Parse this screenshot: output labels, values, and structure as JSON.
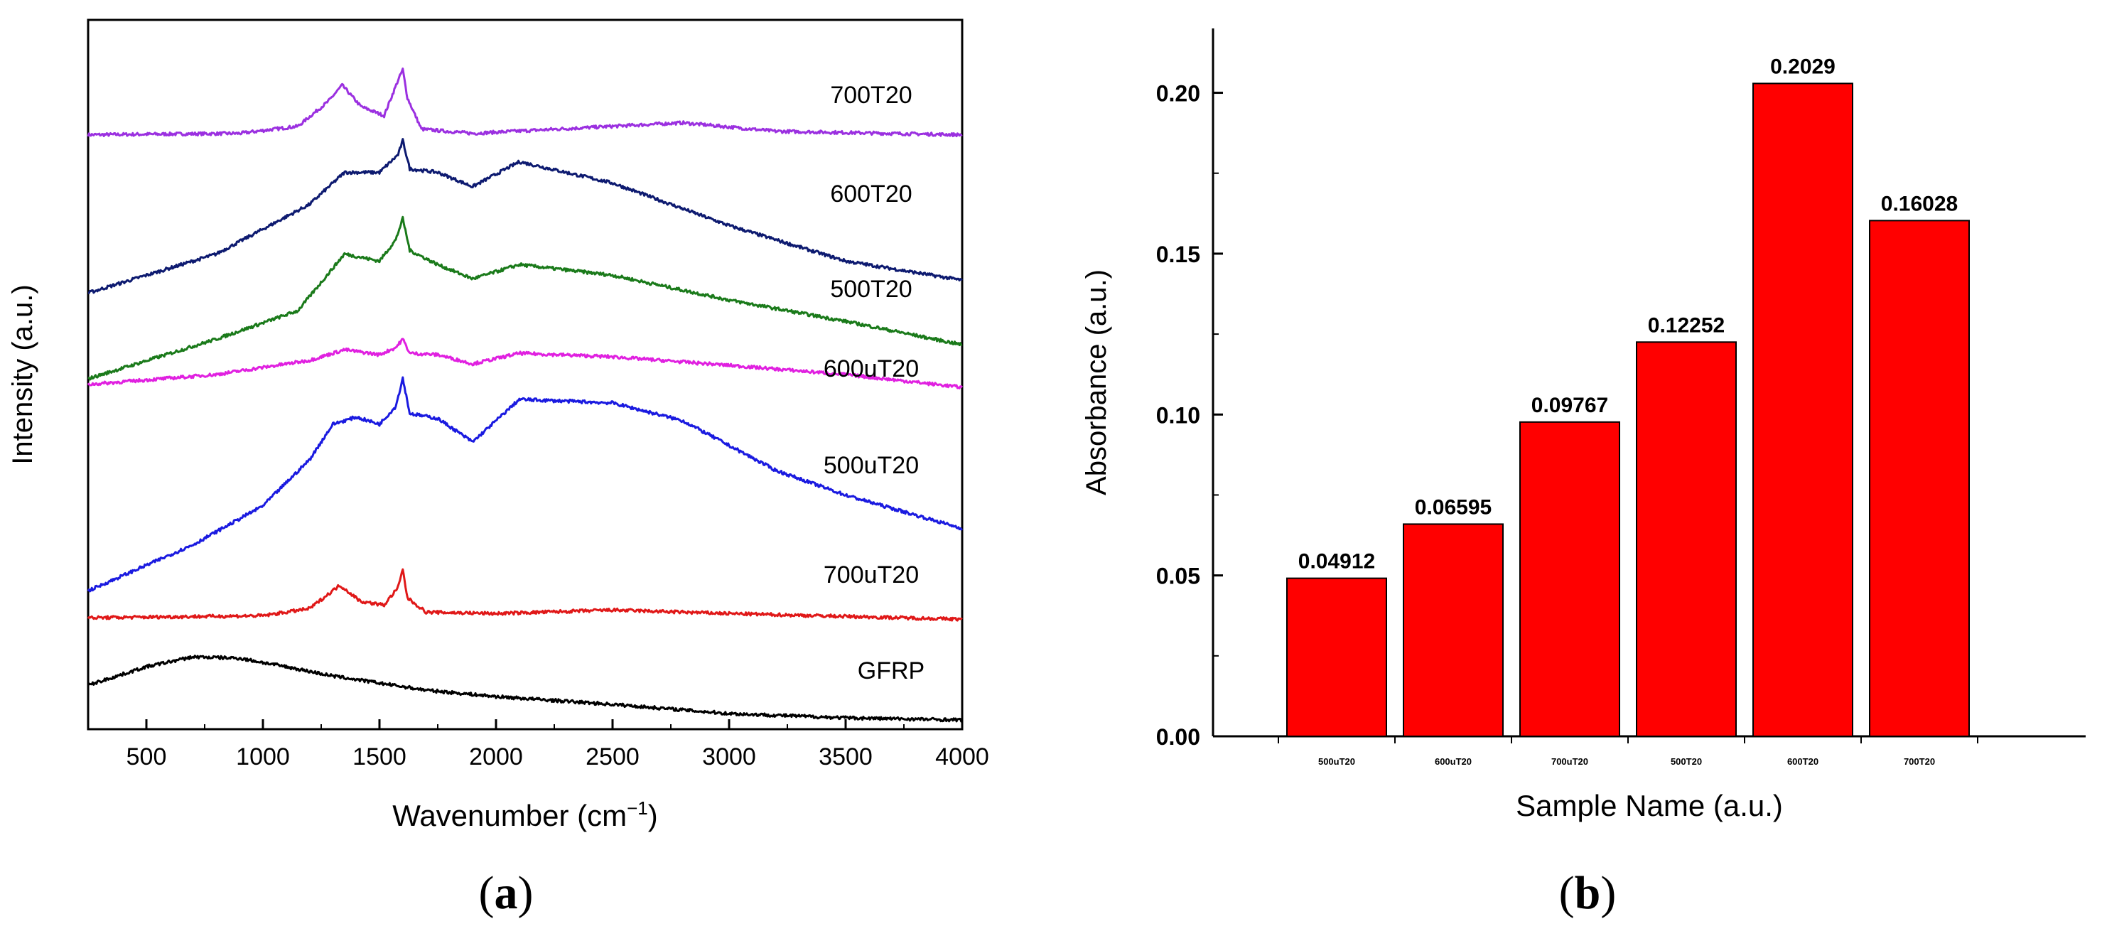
{
  "panel_a_caption": {
    "open": "(",
    "letter": "a",
    "close": ")"
  },
  "panel_b_caption": {
    "open": "(",
    "letter": "b",
    "close": ")"
  },
  "chart_data": [
    {
      "type": "line",
      "panel": "a",
      "title": "",
      "xlabel": "Wavenumber (cm",
      "xlabel_sup": "−1",
      "xlabel_end": ")",
      "ylabel": "Intensity (a.u.)",
      "xlim": [
        250,
        4000
      ],
      "xticks": [
        500,
        1000,
        1500,
        2000,
        2500,
        3000,
        3500,
        4000
      ],
      "xtick_labels": [
        "500",
        "1000",
        "1500",
        "2000",
        "2500",
        "3000",
        "3500",
        "4000"
      ],
      "y_axis_ticks_shown": false,
      "note": "Curves are vertically offset Raman spectra; y-values in arbitrary units (0 = bottom of axis, 100 = top).",
      "ylim": [
        0,
        100
      ],
      "series": [
        {
          "name": "700T20",
          "color": "#9b30e0",
          "x": [
            250,
            900,
            1150,
            1280,
            1340,
            1420,
            1520,
            1580,
            1600,
            1620,
            1680,
            1900,
            2500,
            2800,
            3200,
            4000
          ],
          "y": [
            83.8,
            84.0,
            85.0,
            88.5,
            90.8,
            87.8,
            86.5,
            91.5,
            93.0,
            89.0,
            84.6,
            84.0,
            85.0,
            85.5,
            84.3,
            83.8
          ]
        },
        {
          "name": "600T20",
          "color": "#0d1a70",
          "x": [
            250,
            800,
            1200,
            1350,
            1500,
            1580,
            1600,
            1630,
            1750,
            1900,
            2100,
            2500,
            3000,
            3500,
            4000
          ],
          "y": [
            61.5,
            67.0,
            74.0,
            78.5,
            78.5,
            81.0,
            83.0,
            79.0,
            78.5,
            76.5,
            80.0,
            77.0,
            71.0,
            66.0,
            63.3
          ]
        },
        {
          "name": "500T20",
          "color": "#1a7a1a",
          "x": [
            250,
            800,
            1150,
            1300,
            1350,
            1500,
            1570,
            1600,
            1630,
            1750,
            1900,
            2100,
            2500,
            3000,
            3500,
            4000
          ],
          "y": [
            49.4,
            55.0,
            59.0,
            65.0,
            67.0,
            66.0,
            69.0,
            72.0,
            67.5,
            65.5,
            63.5,
            65.5,
            64.0,
            60.5,
            57.5,
            54.2
          ]
        },
        {
          "name": "600uT20",
          "color": "#e020e0",
          "x": [
            250,
            800,
            1200,
            1350,
            1500,
            1570,
            1600,
            1630,
            1750,
            1900,
            2100,
            2500,
            3000,
            3500,
            4000
          ],
          "y": [
            48.6,
            50.0,
            52.0,
            53.5,
            52.8,
            53.8,
            55.0,
            53.0,
            52.8,
            51.5,
            53.0,
            52.5,
            51.3,
            50.0,
            48.2
          ]
        },
        {
          "name": "500uT20",
          "color": "#1a1ae0",
          "x": [
            250,
            700,
            1000,
            1200,
            1300,
            1400,
            1500,
            1570,
            1600,
            1630,
            1750,
            1900,
            2100,
            2500,
            2800,
            3200,
            3500,
            4000
          ],
          "y": [
            19.5,
            26.0,
            31.5,
            38.0,
            43.0,
            44.0,
            43.0,
            45.5,
            49.5,
            44.5,
            43.8,
            40.5,
            46.5,
            46.0,
            43.5,
            36.5,
            33.0,
            28.3
          ]
        },
        {
          "name": "700uT20",
          "color": "#e01818",
          "x": [
            250,
            1000,
            1200,
            1330,
            1420,
            1520,
            1580,
            1600,
            1620,
            1700,
            2000,
            2500,
            3000,
            3500,
            4000
          ],
          "y": [
            15.7,
            16.0,
            17.0,
            20.3,
            18.0,
            17.5,
            20.0,
            22.5,
            18.5,
            16.5,
            16.3,
            16.8,
            16.3,
            15.9,
            15.5
          ]
        },
        {
          "name": "GFRP",
          "color": "#000000",
          "x": [
            250,
            500,
            700,
            900,
            1100,
            1300,
            1500,
            1700,
            2000,
            2500,
            3000,
            3500,
            4000
          ],
          "y": [
            6.2,
            8.8,
            10.2,
            10.0,
            8.8,
            7.5,
            6.5,
            5.5,
            4.6,
            3.5,
            2.2,
            1.6,
            1.3
          ]
        }
      ]
    },
    {
      "type": "bar",
      "panel": "b",
      "title": "",
      "xlabel": "Sample Name (a.u.)",
      "ylabel": "Absorbance (a.u.)",
      "ylim": [
        0,
        0.22
      ],
      "yticks": [
        0.0,
        0.05,
        0.1,
        0.15,
        0.2
      ],
      "ytick_labels": [
        "0.00",
        "0.05",
        "0.10",
        "0.15",
        "0.20"
      ],
      "categories": [
        "500uT20",
        "600uT20",
        "700uT20",
        "500T20",
        "600T20",
        "700T20"
      ],
      "values": [
        0.04912,
        0.06595,
        0.09767,
        0.12252,
        0.2029,
        0.16028
      ],
      "data_labels": [
        "0.04912",
        "0.06595",
        "0.09767",
        "0.12252",
        "0.2029",
        "0.16028"
      ],
      "bar_color": "#ff0000",
      "bar_edge_color": "#000000"
    }
  ]
}
